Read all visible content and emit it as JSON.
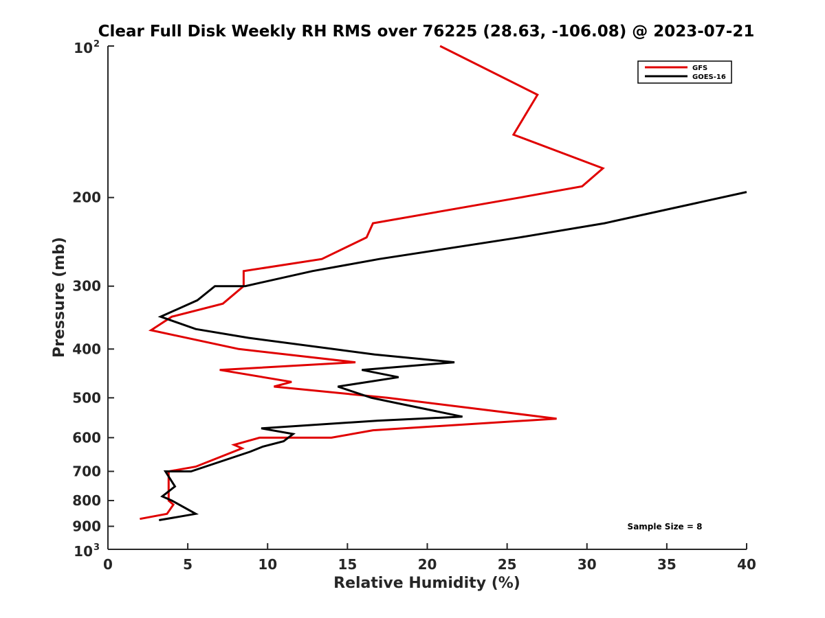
{
  "chart_data": {
    "type": "line",
    "title": "Clear Full Disk Weekly RH RMS over 76225 (28.63, -106.08) @ 2023-07-21",
    "xlabel": "Relative Humidity (%)",
    "ylabel": "Pressure (mb)",
    "xlim": [
      0,
      40
    ],
    "ylim": [
      100,
      1000
    ],
    "yscale": "log",
    "y_reversed": true,
    "grid": false,
    "legend_position": "top-right",
    "x_ticks": [
      "0",
      "5",
      "10",
      "15",
      "20",
      "25",
      "30",
      "35",
      "40"
    ],
    "y_ticks": [
      {
        "value": 100,
        "base": "10",
        "exp": "2"
      },
      {
        "value": 200,
        "label": "200"
      },
      {
        "value": 300,
        "label": "300"
      },
      {
        "value": 400,
        "label": "400"
      },
      {
        "value": 500,
        "label": "500"
      },
      {
        "value": 600,
        "label": "600"
      },
      {
        "value": 700,
        "label": "700"
      },
      {
        "value": 800,
        "label": "800"
      },
      {
        "value": 900,
        "label": "900"
      },
      {
        "value": 1000,
        "base": "10",
        "exp": "3"
      }
    ],
    "annotation": "Sample Size = 8",
    "series": [
      {
        "name": "GFS",
        "color": "#e00000",
        "points": [
          [
            20.8,
            100
          ],
          [
            26.9,
            125
          ],
          [
            25.4,
            150
          ],
          [
            31.0,
            175
          ],
          [
            29.7,
            190
          ],
          [
            25.8,
            200
          ],
          [
            16.6,
            225
          ],
          [
            16.2,
            240
          ],
          [
            13.4,
            265
          ],
          [
            8.5,
            280
          ],
          [
            8.5,
            300
          ],
          [
            7.2,
            325
          ],
          [
            4.0,
            345
          ],
          [
            2.7,
            367
          ],
          [
            8.2,
            400
          ],
          [
            15.5,
            425
          ],
          [
            7.0,
            440
          ],
          [
            11.5,
            465
          ],
          [
            10.4,
            475
          ],
          [
            17.5,
            500
          ],
          [
            28.1,
            550
          ],
          [
            16.6,
            580
          ],
          [
            14.0,
            600
          ],
          [
            9.5,
            600
          ],
          [
            7.9,
            620
          ],
          [
            8.4,
            630
          ],
          [
            5.5,
            685
          ],
          [
            3.8,
            700
          ],
          [
            3.8,
            800
          ],
          [
            4.1,
            815
          ],
          [
            3.7,
            850
          ],
          [
            2.0,
            870
          ]
        ]
      },
      {
        "name": "GOES-16",
        "color": "#000000",
        "points": [
          [
            40.0,
            195
          ],
          [
            31.1,
            225
          ],
          [
            25.8,
            240
          ],
          [
            17.0,
            265
          ],
          [
            12.8,
            280
          ],
          [
            8.6,
            300
          ],
          [
            6.7,
            300
          ],
          [
            5.6,
            320
          ],
          [
            3.3,
            345
          ],
          [
            5.5,
            365
          ],
          [
            8.8,
            380
          ],
          [
            16.7,
            410
          ],
          [
            21.7,
            425
          ],
          [
            15.9,
            440
          ],
          [
            18.2,
            455
          ],
          [
            14.4,
            475
          ],
          [
            16.5,
            500
          ],
          [
            17.8,
            510
          ],
          [
            22.2,
            545
          ],
          [
            16.9,
            555
          ],
          [
            9.6,
            575
          ],
          [
            11.6,
            590
          ],
          [
            11.0,
            610
          ],
          [
            9.7,
            625
          ],
          [
            8.9,
            640
          ],
          [
            5.2,
            700
          ],
          [
            3.6,
            700
          ],
          [
            4.2,
            750
          ],
          [
            3.4,
            785
          ],
          [
            4.0,
            800
          ],
          [
            5.5,
            850
          ],
          [
            3.2,
            875
          ]
        ]
      }
    ]
  }
}
